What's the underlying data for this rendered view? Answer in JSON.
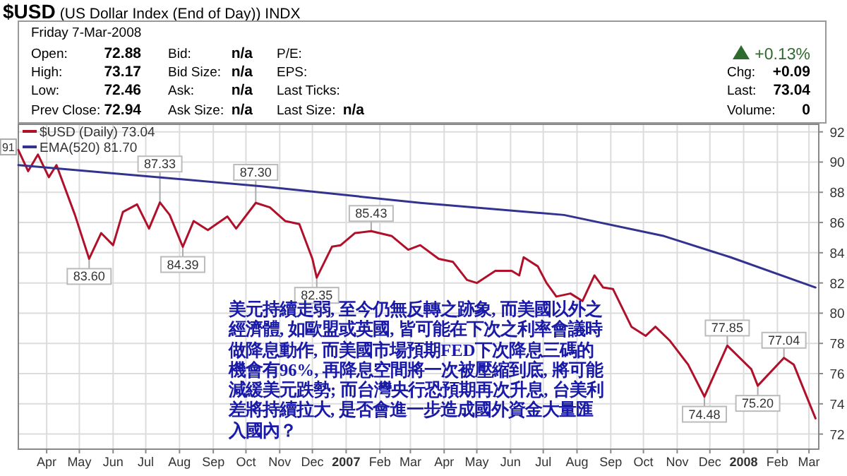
{
  "chart_data": {
    "type": "line",
    "title": "$USD (US Dollar Index (End of Day)) INDX",
    "xlim": [
      "2006-03-06",
      "2008-03-10"
    ],
    "ylim": [
      71,
      92.5
    ],
    "xticks": [
      {
        "value": "2006-04-01",
        "label": "Apr"
      },
      {
        "value": "2006-05-01",
        "label": "May"
      },
      {
        "value": "2006-06-01",
        "label": "Jun"
      },
      {
        "value": "2006-07-01",
        "label": "Jul"
      },
      {
        "value": "2006-08-01",
        "label": "Aug"
      },
      {
        "value": "2006-09-01",
        "label": "Sep"
      },
      {
        "value": "2006-10-01",
        "label": "Oct"
      },
      {
        "value": "2006-11-01",
        "label": "Nov"
      },
      {
        "value": "2006-12-01",
        "label": "Dec"
      },
      {
        "value": "2007-01-01",
        "label": "2007"
      },
      {
        "value": "2007-02-01",
        "label": "Feb"
      },
      {
        "value": "2007-03-01",
        "label": "Mar"
      },
      {
        "value": "2007-04-01",
        "label": "Apr"
      },
      {
        "value": "2007-05-01",
        "label": "May"
      },
      {
        "value": "2007-06-01",
        "label": "Jun"
      },
      {
        "value": "2007-07-01",
        "label": "Jul"
      },
      {
        "value": "2007-08-01",
        "label": "Aug"
      },
      {
        "value": "2007-09-01",
        "label": "Sep"
      },
      {
        "value": "2007-10-01",
        "label": "Oct"
      },
      {
        "value": "2007-11-01",
        "label": "Nov"
      },
      {
        "value": "2007-12-01",
        "label": "Dec"
      },
      {
        "value": "2008-01-01",
        "label": "2008"
      },
      {
        "value": "2008-02-01",
        "label": "Feb"
      },
      {
        "value": "2008-03-01",
        "label": "Mar"
      }
    ],
    "yticks": [
      72,
      74,
      76,
      78,
      80,
      82,
      84,
      86,
      88,
      90,
      92
    ],
    "grid": true,
    "legend": "top left",
    "line_style": "solid",
    "series": [
      {
        "name": "$USD (Daily) 73.04",
        "color": "#b0102a",
        "x": [
          "2006-03-06",
          "2006-03-15",
          "2006-03-24",
          "2006-04-03",
          "2006-04-10",
          "2006-04-27",
          "2006-05-10",
          "2006-05-21",
          "2006-06-01",
          "2006-06-10",
          "2006-06-23",
          "2006-07-04",
          "2006-07-14",
          "2006-07-23",
          "2006-08-04",
          "2006-08-14",
          "2006-08-27",
          "2006-09-14",
          "2006-09-22",
          "2006-10-10",
          "2006-10-23",
          "2006-11-06",
          "2006-11-19",
          "2006-12-01",
          "2006-12-05",
          "2006-12-19",
          "2006-12-27",
          "2007-01-09",
          "2007-01-24",
          "2007-02-12",
          "2007-02-27",
          "2007-03-10",
          "2007-03-27",
          "2007-04-09",
          "2007-04-22",
          "2007-05-01",
          "2007-05-18",
          "2007-06-02",
          "2007-06-09",
          "2007-06-13",
          "2007-06-26",
          "2007-07-04",
          "2007-07-13",
          "2007-07-26",
          "2007-08-06",
          "2007-08-17",
          "2007-08-25",
          "2007-09-03",
          "2007-09-20",
          "2007-10-03",
          "2007-10-12",
          "2007-10-25",
          "2007-11-11",
          "2007-11-26",
          "2007-12-17",
          "2008-01-08",
          "2008-01-14",
          "2008-02-07",
          "2008-02-16",
          "2008-03-01",
          "2008-03-07"
        ],
        "values": [
          90.8,
          89.4,
          90.5,
          89.0,
          89.8,
          86.5,
          83.6,
          85.3,
          84.5,
          86.7,
          87.2,
          85.6,
          87.33,
          86.5,
          84.39,
          86.1,
          85.5,
          86.4,
          85.6,
          87.3,
          87.0,
          86.1,
          85.9,
          83.6,
          82.35,
          84.4,
          84.5,
          85.3,
          85.43,
          85.1,
          84.2,
          84.5,
          83.6,
          83.4,
          82.2,
          82.0,
          82.8,
          82.8,
          82.5,
          83.7,
          83.1,
          82.0,
          81.1,
          81.3,
          80.8,
          82.5,
          81.7,
          81.6,
          79.1,
          78.5,
          79.1,
          78.2,
          76.6,
          74.48,
          77.85,
          76.3,
          75.2,
          77.04,
          76.6,
          74.1,
          73.04
        ]
      },
      {
        "name": "EMA(520) 81.70",
        "color": "#33338f",
        "x": [
          "2006-03-06",
          "2006-10-15",
          "2007-03-10",
          "2007-07-20",
          "2007-10-20",
          "2007-12-20",
          "2008-03-07"
        ],
        "values": [
          89.8,
          88.4,
          87.3,
          86.5,
          85.1,
          83.7,
          81.7
        ]
      }
    ],
    "annotations": [
      "Friday  7-Mar-2008",
      "Open:",
      "72.88",
      "High:",
      "73.17",
      "Low:",
      "72.46",
      "Prev Close:",
      "72.94",
      "Bid:",
      "n/a",
      "Bid Size:",
      "n/a",
      "Ask:",
      "n/a",
      "Ask Size:",
      "n/a",
      "P/E:",
      "EPS:",
      "Last Ticks:",
      "Last Size:",
      "n/a",
      "+0.13%",
      "Chg:",
      "+0.09",
      "Last:",
      "73.04",
      "Volume:",
      "0",
      "美元持續走弱, 至今仍無反轉之跡象, 而美國以外之經濟體, 如歐盟或英國, 皆可能在下次之利率會議時做降息動作, 而美國市場預期FED下次降息三碼的機會有96%, 再降息空間將一次被壓縮到底, 將可能減緩美元跌勢; 而台灣央行恐預期再次升息, 台美利差將持續拉大, 是否會進一步造成國外資金大量匯入國內？",
      {
        "text": "91",
        "x": "2006-03-06",
        "y": 91
      },
      {
        "text": "83.60",
        "x": "2006-05-10",
        "y": 83.6
      },
      {
        "text": "87.33",
        "x": "2006-07-14",
        "y": 87.33
      },
      {
        "text": "84.39",
        "x": "2006-08-04",
        "y": 84.39
      },
      {
        "text": "87.30",
        "x": "2006-10-10",
        "y": 87.3
      },
      {
        "text": "82.35",
        "x": "2006-12-05",
        "y": 82.35
      },
      {
        "text": "85.43",
        "x": "2007-01-24",
        "y": 85.43
      },
      {
        "text": "74.48",
        "x": "2007-11-26",
        "y": 74.48
      },
      {
        "text": "77.85",
        "x": "2007-12-17",
        "y": 77.85
      },
      {
        "text": "75.20",
        "x": "2008-01-14",
        "y": 75.2
      },
      {
        "text": "77.04",
        "x": "2008-02-07",
        "y": 77.04
      }
    ]
  }
}
